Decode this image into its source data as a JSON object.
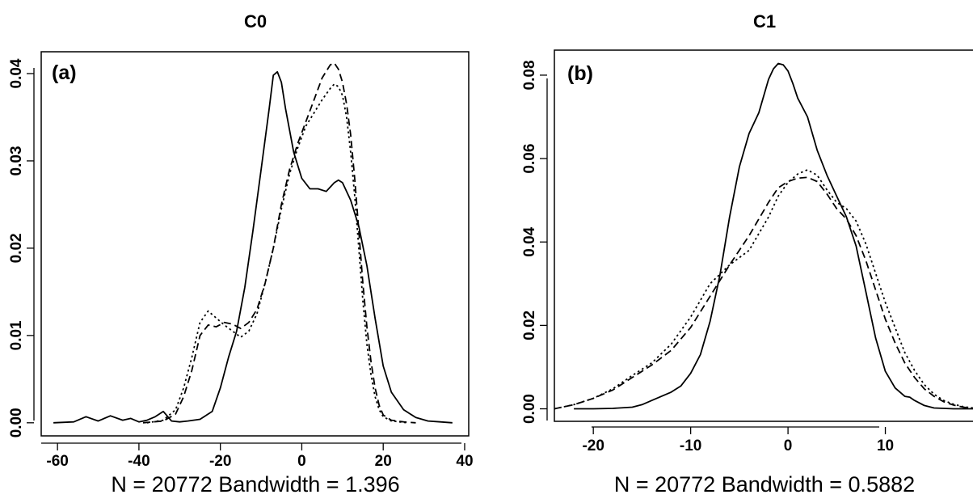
{
  "chart_data": [
    {
      "type": "line",
      "title": "C0",
      "panel_label": "(a)",
      "xlabel": "N = 20772   Bandwidth = 1.396",
      "ylabel": "",
      "xlim": [
        -64,
        41
      ],
      "ylim": [
        -0.0015,
        0.0425
      ],
      "xticks": [
        -60,
        -40,
        -20,
        0,
        20,
        40
      ],
      "xtick_labels": [
        "-60",
        "-40",
        "-20",
        "0",
        "20",
        "40"
      ],
      "yticks": [
        0,
        0.01,
        0.02,
        0.03,
        0.04
      ],
      "ytick_labels": [
        "0.00",
        "0.01",
        "0.02",
        "0.03",
        "0.04"
      ],
      "grid": false,
      "legend": "none",
      "series": [
        {
          "style": "solid",
          "x": [
            -61,
            -56,
            -53,
            -50,
            -47,
            -44,
            -42,
            -40,
            -38,
            -36,
            -34,
            -32,
            -30,
            -28,
            -25,
            -22,
            -20,
            -18,
            -16,
            -14,
            -12,
            -10,
            -8,
            -7,
            -6,
            -5,
            -4,
            -2,
            0,
            2,
            4,
            6,
            8,
            9,
            10,
            12,
            14,
            16,
            18,
            20,
            22,
            25,
            28,
            31,
            34,
            37
          ],
          "y": [
            0.0,
            0.0001,
            0.0007,
            0.0002,
            0.0008,
            0.0003,
            0.0005,
            0.0001,
            0.0003,
            0.0007,
            0.0013,
            0.0002,
            0.0001,
            0.0002,
            0.0004,
            0.0013,
            0.004,
            0.0075,
            0.0105,
            0.0155,
            0.022,
            0.029,
            0.036,
            0.0398,
            0.0402,
            0.039,
            0.036,
            0.031,
            0.028,
            0.0268,
            0.0268,
            0.0265,
            0.0275,
            0.0278,
            0.0275,
            0.0255,
            0.0225,
            0.018,
            0.012,
            0.0065,
            0.0035,
            0.0015,
            0.0006,
            0.0002,
            0.0001,
            0.0
          ]
        },
        {
          "style": "dashed",
          "x": [
            -39,
            -34,
            -31,
            -29,
            -27,
            -25,
            -23,
            -21,
            -19,
            -17,
            -15,
            -13,
            -11,
            -9,
            -7,
            -5,
            -3,
            -1,
            1,
            3,
            5,
            7,
            8,
            9,
            10,
            11,
            12,
            13,
            14,
            15,
            16,
            17,
            18,
            19,
            20,
            22,
            25,
            28
          ],
          "y": [
            0.0,
            0.0002,
            0.001,
            0.003,
            0.006,
            0.01,
            0.0112,
            0.011,
            0.0115,
            0.0113,
            0.0108,
            0.0115,
            0.013,
            0.016,
            0.02,
            0.025,
            0.029,
            0.032,
            0.0345,
            0.037,
            0.0395,
            0.041,
            0.0412,
            0.0405,
            0.039,
            0.0365,
            0.033,
            0.028,
            0.022,
            0.016,
            0.011,
            0.007,
            0.004,
            0.002,
            0.0009,
            0.0003,
            0.0001,
            0.0
          ]
        },
        {
          "style": "dotted",
          "x": [
            -38,
            -34,
            -31,
            -29,
            -27,
            -25,
            -23,
            -21,
            -19,
            -17,
            -15,
            -13,
            -11,
            -9,
            -7,
            -5,
            -3,
            -1,
            1,
            3,
            5,
            7,
            8,
            9,
            10,
            11,
            12,
            13,
            14,
            15,
            16,
            17,
            18,
            19,
            20,
            22,
            24,
            26
          ],
          "y": [
            0.0,
            0.0003,
            0.0015,
            0.004,
            0.0075,
            0.0115,
            0.0128,
            0.012,
            0.0112,
            0.0105,
            0.0098,
            0.0105,
            0.0125,
            0.016,
            0.02,
            0.0245,
            0.0285,
            0.0315,
            0.034,
            0.0355,
            0.037,
            0.0383,
            0.0388,
            0.0385,
            0.0375,
            0.035,
            0.031,
            0.026,
            0.02,
            0.014,
            0.009,
            0.0055,
            0.003,
            0.0015,
            0.0007,
            0.0002,
            0.0001,
            0.0
          ]
        }
      ]
    },
    {
      "type": "line",
      "title": "C1",
      "panel_label": "(b)",
      "xlabel": "N = 20772   Bandwidth = 0.5882",
      "ylabel": "",
      "xlim": [
        -24,
        20
      ],
      "ylim": [
        -0.003,
        0.086
      ],
      "xticks": [
        -20,
        -10,
        0,
        10
      ],
      "xtick_labels": [
        "-20",
        "-10",
        "0",
        "10"
      ],
      "yticks": [
        0,
        0.02,
        0.04,
        0.06,
        0.08
      ],
      "ytick_labels": [
        "0.00",
        "0.02",
        "0.04",
        "0.06",
        "0.08"
      ],
      "grid": false,
      "legend": "none",
      "series": [
        {
          "style": "solid",
          "x": [
            -22,
            -20,
            -18,
            -16,
            -15,
            -14,
            -13,
            -12,
            -11,
            -10,
            -9,
            -8,
            -7,
            -6,
            -5,
            -4,
            -3,
            -2.5,
            -2,
            -1.5,
            -1,
            -0.5,
            0,
            0.5,
            1,
            2,
            3,
            4,
            5,
            6,
            7,
            8,
            9,
            10,
            11,
            12,
            12.5,
            13,
            14,
            15,
            16,
            17,
            18,
            19
          ],
          "y": [
            0.0,
            0.0,
            0.0001,
            0.0004,
            0.001,
            0.002,
            0.003,
            0.004,
            0.0055,
            0.0085,
            0.013,
            0.021,
            0.032,
            0.046,
            0.058,
            0.066,
            0.071,
            0.075,
            0.079,
            0.0815,
            0.0828,
            0.0825,
            0.081,
            0.078,
            0.0745,
            0.07,
            0.062,
            0.056,
            0.051,
            0.046,
            0.039,
            0.028,
            0.017,
            0.009,
            0.005,
            0.003,
            0.0028,
            0.002,
            0.0008,
            0.0002,
            0.0001,
            0.0,
            0.0,
            0.0
          ]
        },
        {
          "style": "dashed",
          "x": [
            -24,
            -22,
            -20,
            -18,
            -16,
            -14,
            -12,
            -10,
            -8,
            -6,
            -4,
            -2,
            -1,
            0,
            1,
            2,
            3,
            4,
            5,
            6,
            7,
            8,
            9,
            10,
            11,
            12,
            13,
            14,
            15,
            16,
            17,
            18,
            19,
            20
          ],
          "y": [
            0.0,
            0.001,
            0.0025,
            0.0045,
            0.0075,
            0.0105,
            0.014,
            0.0195,
            0.027,
            0.0345,
            0.0415,
            0.0495,
            0.053,
            0.0545,
            0.0553,
            0.0555,
            0.0545,
            0.0515,
            0.048,
            0.0455,
            0.0415,
            0.0355,
            0.0285,
            0.0215,
            0.0158,
            0.011,
            0.0075,
            0.0048,
            0.003,
            0.0017,
            0.0009,
            0.0004,
            0.0001,
            0.0
          ]
        },
        {
          "style": "dotted",
          "x": [
            -24,
            -22,
            -20,
            -18,
            -16,
            -14,
            -12,
            -10,
            -8,
            -6,
            -4,
            -2,
            -1,
            0,
            1,
            2,
            3,
            4,
            5,
            6,
            7,
            8,
            9,
            10,
            11,
            12,
            13,
            14,
            15,
            16,
            17,
            18,
            19,
            20
          ],
          "y": [
            0.0,
            0.001,
            0.0025,
            0.0048,
            0.008,
            0.011,
            0.0155,
            0.022,
            0.03,
            0.0345,
            0.038,
            0.046,
            0.051,
            0.0543,
            0.0563,
            0.0573,
            0.056,
            0.0525,
            0.0495,
            0.048,
            0.045,
            0.0395,
            0.0325,
            0.0255,
            0.0195,
            0.0135,
            0.0092,
            0.0058,
            0.0035,
            0.002,
            0.0011,
            0.0005,
            0.0002,
            0.0
          ]
        }
      ]
    }
  ]
}
